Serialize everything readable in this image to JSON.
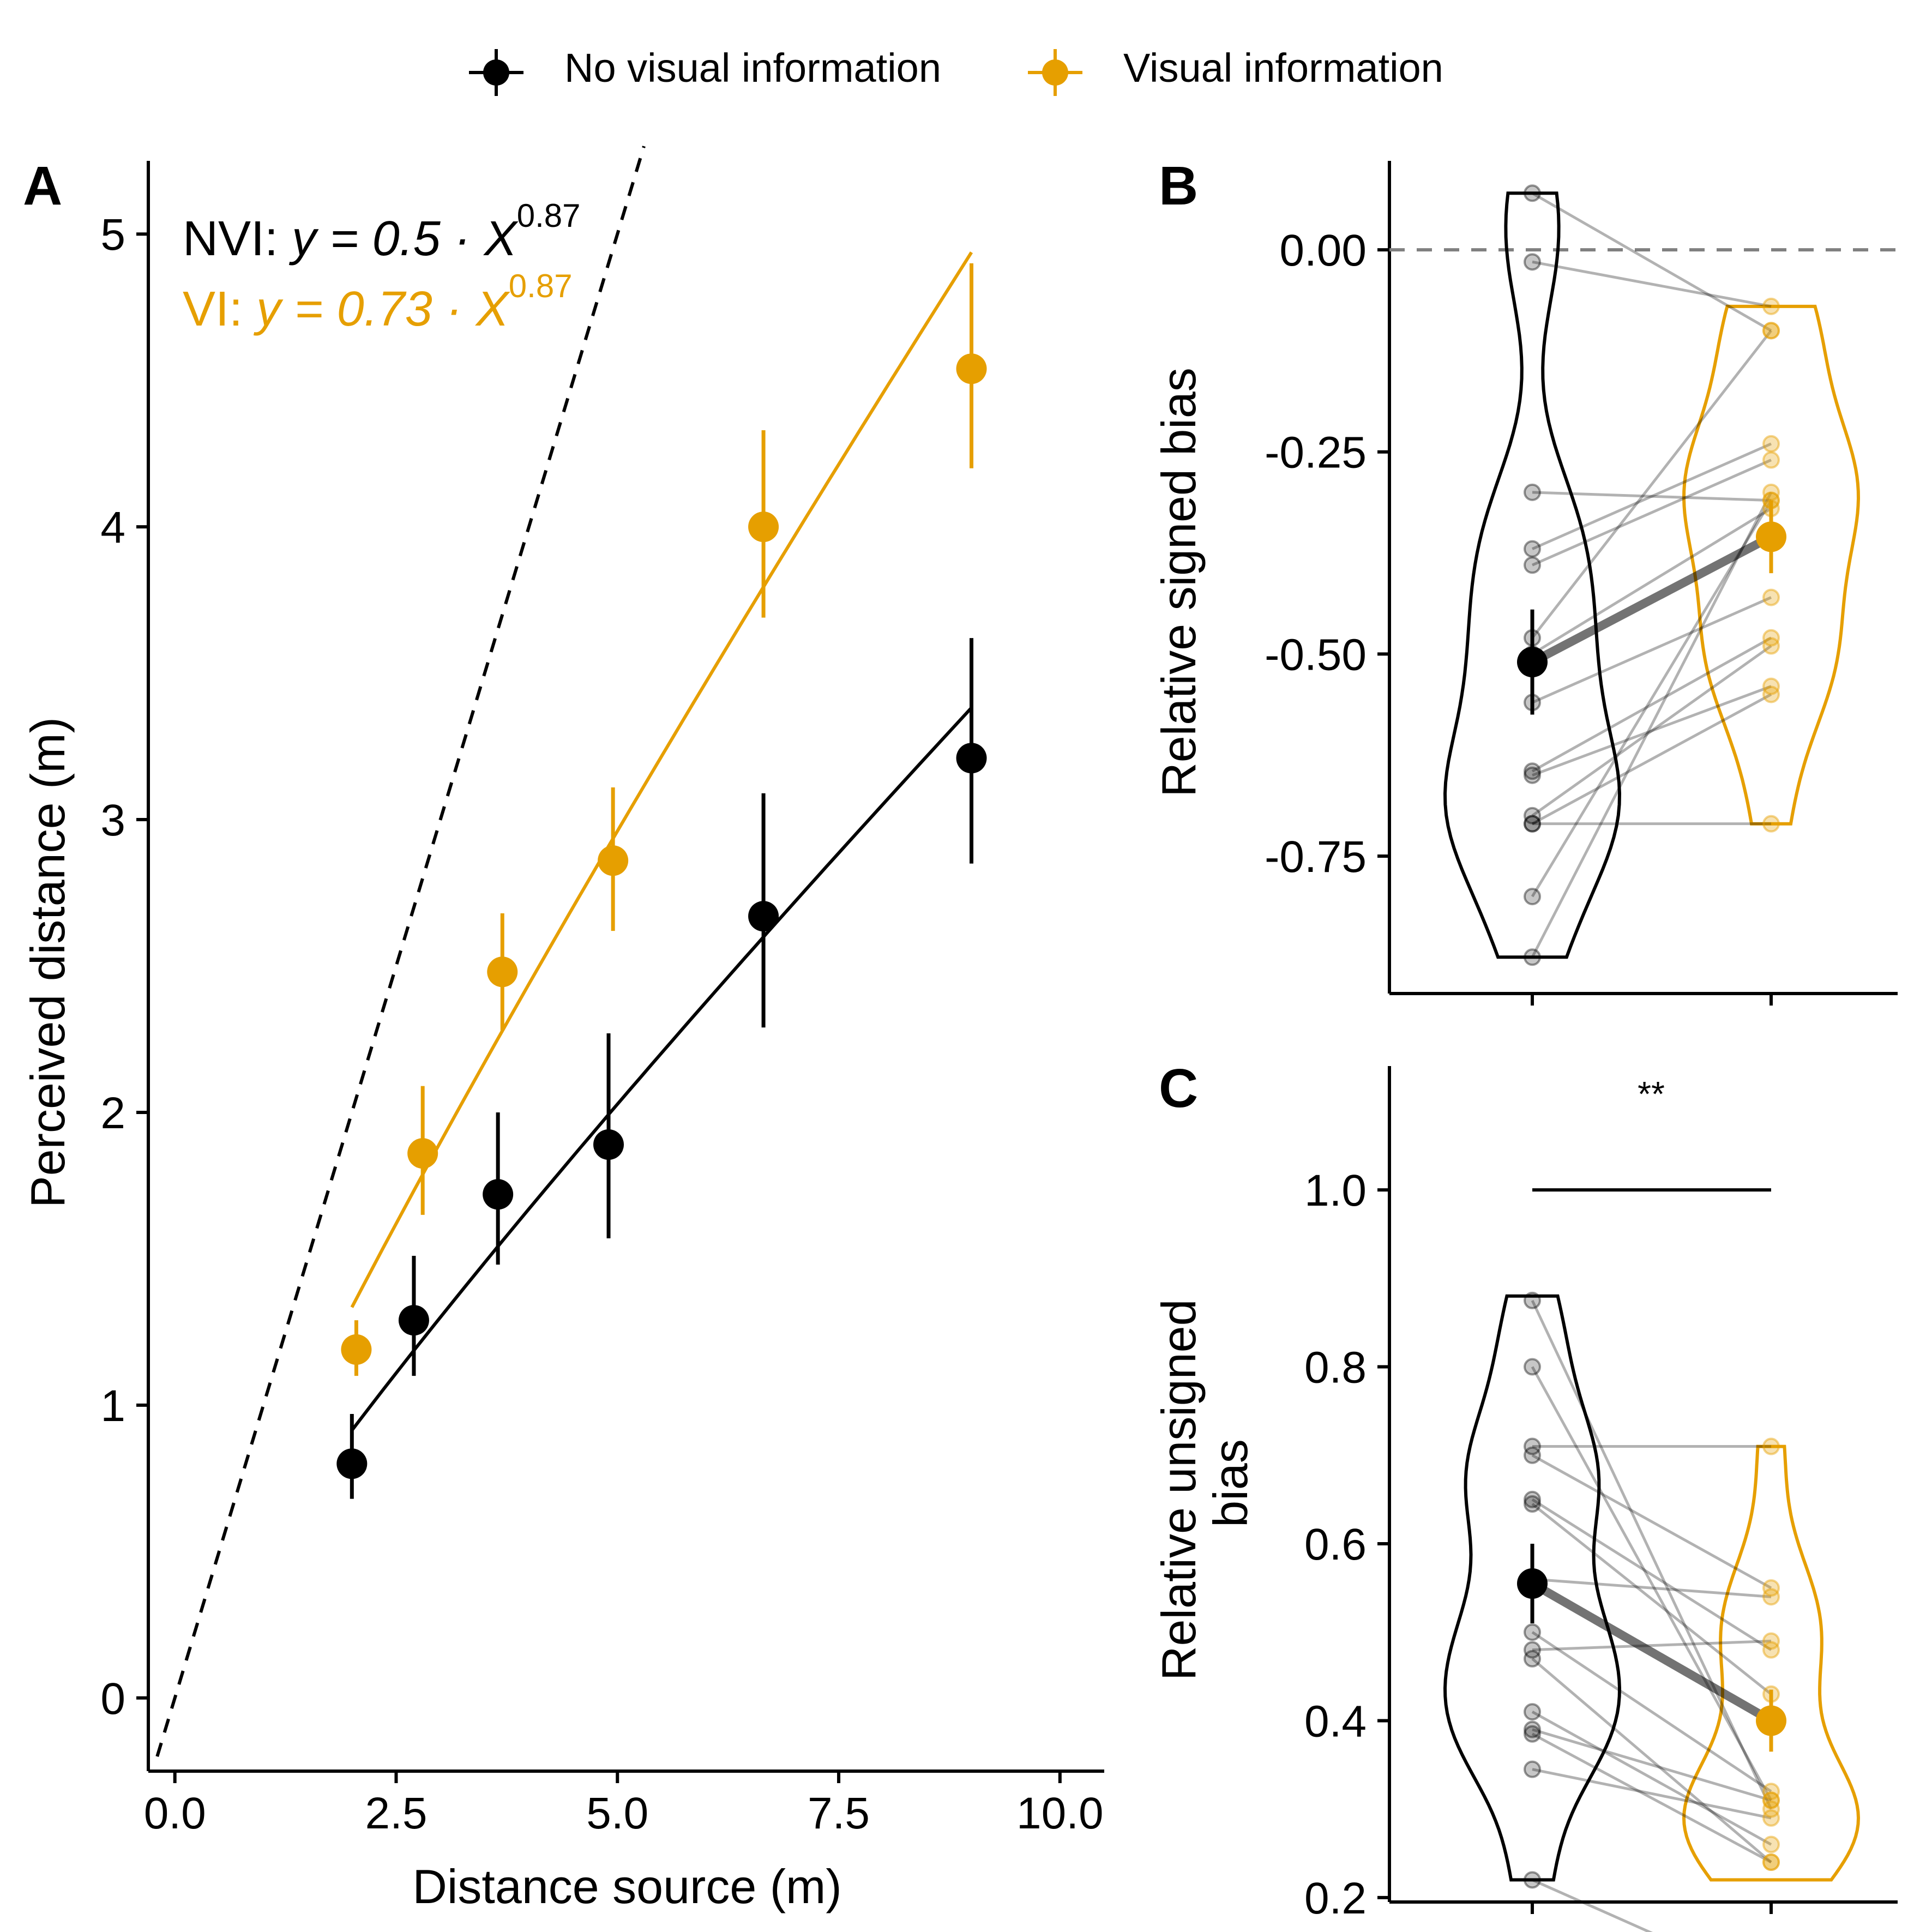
{
  "colors": {
    "nvi": "#000000",
    "vi": "#E69F00",
    "reference": "#000000",
    "zero_line": "#808080"
  },
  "legend": {
    "items": [
      {
        "label": "No visual information",
        "color": "#000000"
      },
      {
        "label": "Visual information",
        "color": "#E69F00"
      }
    ],
    "placement": "top"
  },
  "chart_data": [
    {
      "panel": "A",
      "type": "scatter",
      "xlabel": "Distance source (m)",
      "ylabel": "Perceived distance (m)",
      "xlim": [
        -0.3,
        10.5
      ],
      "ylim": [
        -0.25,
        5.25
      ],
      "x_ticks": [
        "0.0",
        "2.5",
        "5.0",
        "7.5",
        "10.0"
      ],
      "y_ticks": [
        "0",
        "1",
        "2",
        "3",
        "4",
        "5"
      ],
      "grid": false,
      "equations": [
        {
          "label": "NVI: ",
          "expr": "y = 0.5 · X",
          "exponent": "0.87",
          "color": "#000000"
        },
        {
          "label": "VI: ",
          "expr": "y = 0.73 · X",
          "exponent": "0.87",
          "color": "#E69F00"
        }
      ],
      "reference_line": {
        "slope": 1,
        "intercept": 0,
        "style": "dashed",
        "x_range": [
          -0.2,
          5.3
        ]
      },
      "series": [
        {
          "name": "No visual information",
          "color": "#000000",
          "points": [
            {
              "x": 2.0,
              "y": 0.8,
              "ymin": 0.68,
              "ymax": 0.97
            },
            {
              "x": 2.7,
              "y": 1.29,
              "ymin": 1.1,
              "ymax": 1.51
            },
            {
              "x": 3.65,
              "y": 1.72,
              "ymin": 1.48,
              "ymax": 2.0
            },
            {
              "x": 4.9,
              "y": 1.89,
              "ymin": 1.57,
              "ymax": 2.27
            },
            {
              "x": 6.65,
              "y": 2.67,
              "ymin": 2.29,
              "ymax": 3.09
            },
            {
              "x": 9.0,
              "y": 3.21,
              "ymin": 2.85,
              "ymax": 3.62
            }
          ],
          "fit": {
            "a": 0.5,
            "b": 0.87,
            "x_range": [
              2.0,
              9.0
            ]
          }
        },
        {
          "name": "Visual information",
          "color": "#E69F00",
          "points": [
            {
              "x": 2.05,
              "y": 1.19,
              "ymin": 1.1,
              "ymax": 1.29
            },
            {
              "x": 2.8,
              "y": 1.86,
              "ymin": 1.65,
              "ymax": 2.09
            },
            {
              "x": 3.7,
              "y": 2.48,
              "ymin": 2.28,
              "ymax": 2.68
            },
            {
              "x": 4.95,
              "y": 2.86,
              "ymin": 2.62,
              "ymax": 3.11
            },
            {
              "x": 6.65,
              "y": 4.0,
              "ymin": 3.69,
              "ymax": 4.33
            },
            {
              "x": 9.0,
              "y": 4.54,
              "ymin": 4.2,
              "ymax": 4.9
            }
          ],
          "fit": {
            "a": 0.73,
            "b": 0.87,
            "x_range": [
              2.0,
              9.0
            ]
          }
        }
      ]
    },
    {
      "panel": "B",
      "type": "scatter",
      "ylabel": "Relative signed bias",
      "ylim": [
        -0.92,
        0.11
      ],
      "y_ticks": [
        {
          "v": 0.0,
          "label": "0.00"
        },
        {
          "v": -0.25,
          "label": "-0.25"
        },
        {
          "v": -0.5,
          "label": "-0.50"
        },
        {
          "v": -0.75,
          "label": "-0.75"
        }
      ],
      "reference_line": {
        "y": 0,
        "style": "dashed"
      },
      "groups": [
        "No visual information",
        "Visual information"
      ],
      "paired_subjects": [
        [
          0.07,
          -0.1
        ],
        [
          -0.015,
          -0.07
        ],
        [
          -0.3,
          -0.31
        ],
        [
          -0.37,
          -0.24
        ],
        [
          -0.39,
          -0.26
        ],
        [
          -0.48,
          -0.1
        ],
        [
          -0.5,
          -0.32
        ],
        [
          -0.56,
          -0.43
        ],
        [
          -0.645,
          -0.48
        ],
        [
          -0.65,
          -0.54
        ],
        [
          -0.7,
          -0.49
        ],
        [
          -0.71,
          -0.55
        ],
        [
          -0.71,
          -0.71
        ],
        [
          -0.8,
          -0.31
        ],
        [
          -0.875,
          -0.3
        ]
      ],
      "means": [
        {
          "mean": -0.51,
          "ymin": -0.575,
          "ymax": -0.445
        },
        {
          "mean": -0.355,
          "ymin": -0.4,
          "ymax": -0.31
        }
      ],
      "violin_range": [
        [
          -0.875,
          0.07
        ],
        [
          -0.71,
          -0.07
        ]
      ]
    },
    {
      "panel": "C",
      "type": "scatter",
      "ylabel": "Relative unsigned bias",
      "ylim": [
        0.195,
        1.14
      ],
      "y_ticks": [
        {
          "v": 0.2,
          "label": "0.2"
        },
        {
          "v": 0.4,
          "label": "0.4"
        },
        {
          "v": 0.6,
          "label": "0.6"
        },
        {
          "v": 0.8,
          "label": "0.8"
        },
        {
          "v": 1.0,
          "label": "1.0"
        }
      ],
      "significance": {
        "label": "**",
        "y": 1.0
      },
      "groups": [
        "No visual information",
        "Visual information"
      ],
      "paired_subjects": [
        [
          0.875,
          0.3
        ],
        [
          0.8,
          0.31
        ],
        [
          0.71,
          0.71
        ],
        [
          0.7,
          0.55
        ],
        [
          0.65,
          0.48
        ],
        [
          0.645,
          0.43
        ],
        [
          0.56,
          0.54
        ],
        [
          0.5,
          0.32
        ],
        [
          0.48,
          0.49
        ],
        [
          0.47,
          0.24
        ],
        [
          0.41,
          0.26
        ],
        [
          0.39,
          0.31
        ],
        [
          0.385,
          0.24
        ],
        [
          0.345,
          0.29
        ],
        [
          0.22,
          0.1
        ]
      ],
      "means": [
        {
          "mean": 0.555,
          "ymin": 0.51,
          "ymax": 0.6
        },
        {
          "mean": 0.4,
          "ymin": 0.365,
          "ymax": 0.435
        }
      ],
      "violin_range": [
        [
          0.22,
          0.88
        ],
        [
          0.22,
          0.71
        ]
      ]
    }
  ]
}
